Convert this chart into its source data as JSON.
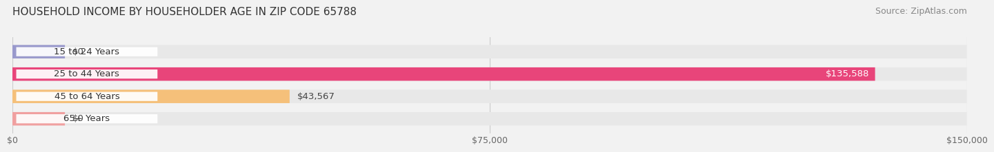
{
  "title": "HOUSEHOLD INCOME BY HOUSEHOLDER AGE IN ZIP CODE 65788",
  "source": "Source: ZipAtlas.com",
  "categories": [
    "15 to 24 Years",
    "25 to 44 Years",
    "45 to 64 Years",
    "65+ Years"
  ],
  "values": [
    0,
    135588,
    43567,
    0
  ],
  "bar_colors": [
    "#9999cc",
    "#e8457a",
    "#f5c07a",
    "#f0a0a0"
  ],
  "label_colors": [
    "#333333",
    "#ffffff",
    "#333333",
    "#333333"
  ],
  "value_labels": [
    "$0",
    "$135,588",
    "$43,567",
    "$0"
  ],
  "x_ticks": [
    0,
    75000,
    150000
  ],
  "x_tick_labels": [
    "$0",
    "$75,000",
    "$150,000"
  ],
  "xlim": [
    0,
    150000
  ],
  "background_color": "#f2f2f2",
  "bar_bg_color": "#e8e8e8",
  "title_fontsize": 11,
  "source_fontsize": 9,
  "label_fontsize": 9.5,
  "value_fontsize": 9.5
}
